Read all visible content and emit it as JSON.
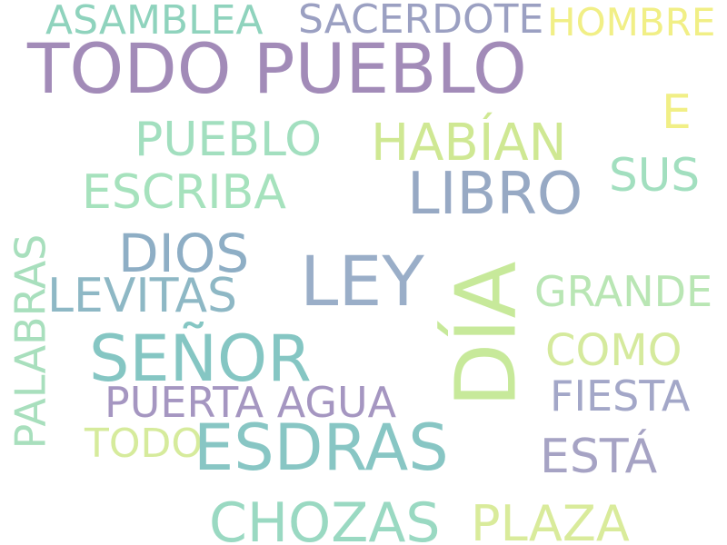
{
  "words": [
    {
      "text": "TODO PUEBLO",
      "color": "#a28bb8"
    },
    {
      "text": "ASAMBLEA",
      "color": "#8fd3bd"
    },
    {
      "text": "SACERDOTE",
      "color": "#9ba0c2"
    },
    {
      "text": "HOMBRE",
      "color": "#f1ef86"
    },
    {
      "text": "E",
      "color": "#f1ef86"
    },
    {
      "text": "PUEBLO",
      "color": "#a2dfbf"
    },
    {
      "text": "HABÍAN",
      "color": "#cfe893"
    },
    {
      "text": "ESCRIBA",
      "color": "#a6e2bd"
    },
    {
      "text": "LIBRO",
      "color": "#97a9c4"
    },
    {
      "text": "SUS",
      "color": "#a2dfbf"
    },
    {
      "text": "DIOS",
      "color": "#8eaec5"
    },
    {
      "text": "LEY",
      "color": "#9aaec8"
    },
    {
      "text": "DÍA",
      "color": "#c7e99a"
    },
    {
      "text": "LEVITAS",
      "color": "#8eb8c5"
    },
    {
      "text": "GRANDE",
      "color": "#b9e6b4"
    },
    {
      "text": "PALABRAS",
      "color": "#a8dfbd"
    },
    {
      "text": "SEÑOR",
      "color": "#85c6c3"
    },
    {
      "text": "COMO",
      "color": "#d5ea9d"
    },
    {
      "text": "PUERTA AGUA",
      "color": "#a596c1"
    },
    {
      "text": "FIESTA",
      "color": "#a3a7c8"
    },
    {
      "text": "TODO",
      "color": "#d6eb9c"
    },
    {
      "text": "ESDRAS",
      "color": "#88c6c4"
    },
    {
      "text": "ESTÁ",
      "color": "#a6a3c4"
    },
    {
      "text": "CHOZAS",
      "color": "#9ad9c2"
    },
    {
      "text": "PLAZA",
      "color": "#d9eb9b"
    }
  ]
}
